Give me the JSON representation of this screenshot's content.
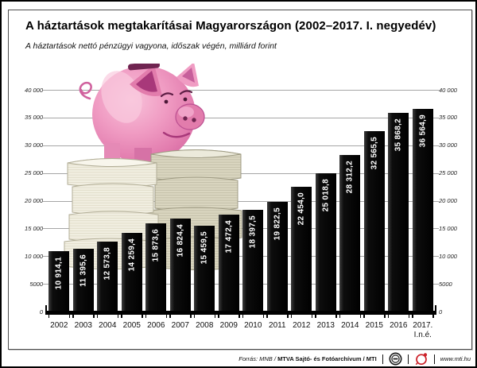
{
  "header": {
    "title": "A háztartások megtakarításai Magyarországon (2002–2017. I. negyedév)",
    "subtitle": "A háztartások nettó pénzügyi vagyona, időszak végén, milliárd forint"
  },
  "chart_data": {
    "type": "bar",
    "title": "A háztartások megtakarításai Magyarországon (2002–2017. I. negyedév)",
    "categories": [
      "2002",
      "2003",
      "2004",
      "2005",
      "2006",
      "2007",
      "2008",
      "2009",
      "2010",
      "2011",
      "2012",
      "2013",
      "2014",
      "2015",
      "2016",
      "2017.\nI.n.é."
    ],
    "values": [
      10914.1,
      11395.6,
      12573.8,
      14259.4,
      15873.6,
      16824.4,
      15459.5,
      17472.4,
      18397.5,
      19822.5,
      22454.0,
      25018.8,
      28312.2,
      32565.5,
      35868.2,
      36564.9
    ],
    "value_labels": [
      "10 914,1",
      "11 395,6",
      "12 573,8",
      "14 259,4",
      "15 873,6",
      "16 824,4",
      "15 459,5",
      "17 472,4",
      "18 397,5",
      "19 822,5",
      "22 454,0",
      "25 018,8",
      "28 312,2",
      "32 565,5",
      "35 868,2",
      "36 564,9"
    ],
    "unit": "milliárd forint",
    "xlabel": "",
    "ylabel": "",
    "ylim": [
      0,
      40000
    ],
    "ytick_step": 5000,
    "ytick_labels": [
      "0",
      "5000",
      "10 000",
      "15 000",
      "20 000",
      "25 000",
      "30 000",
      "35 000",
      "40 000"
    ],
    "grid": true,
    "legend": null,
    "bar_color": "#0a0a0a"
  },
  "illustration": {
    "piggy_bank": "pink piggy bank",
    "money_stacks": "stacks of banknote paper"
  },
  "footer": {
    "source_prefix": "Forrás: MNB / ",
    "source_bold": "MTVA Sajtó- és Fotóarchívum / MTI",
    "website": "www.mti.hu"
  },
  "colors": {
    "bar": "#0a0a0a",
    "grid": "#a6a6a6",
    "pig_pink": "#f09cc3",
    "money_light": "#f2efe2",
    "money_dark": "#dbd7c1",
    "logo_red": "#cc2129"
  }
}
